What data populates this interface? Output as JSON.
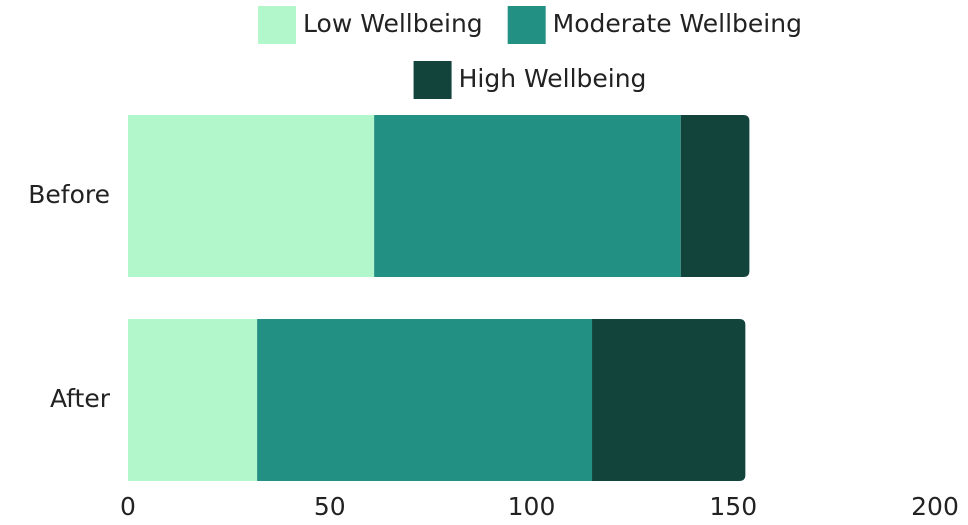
{
  "chart_data": {
    "type": "stacked-barh",
    "categories": [
      "Before",
      "After"
    ],
    "series": [
      {
        "name": "Low Wellbeing",
        "color": "#b2f7cc",
        "values": [
          61,
          32
        ]
      },
      {
        "name": "Moderate Wellbeing",
        "color": "#239084",
        "values": [
          76,
          83
        ]
      },
      {
        "name": "High Wellbeing",
        "color": "#12443c",
        "values": [
          17,
          38
        ]
      }
    ],
    "xlim": [
      0,
      200
    ],
    "xticks": [
      0,
      50,
      100,
      150,
      200
    ],
    "grid": false,
    "legend": "top"
  }
}
